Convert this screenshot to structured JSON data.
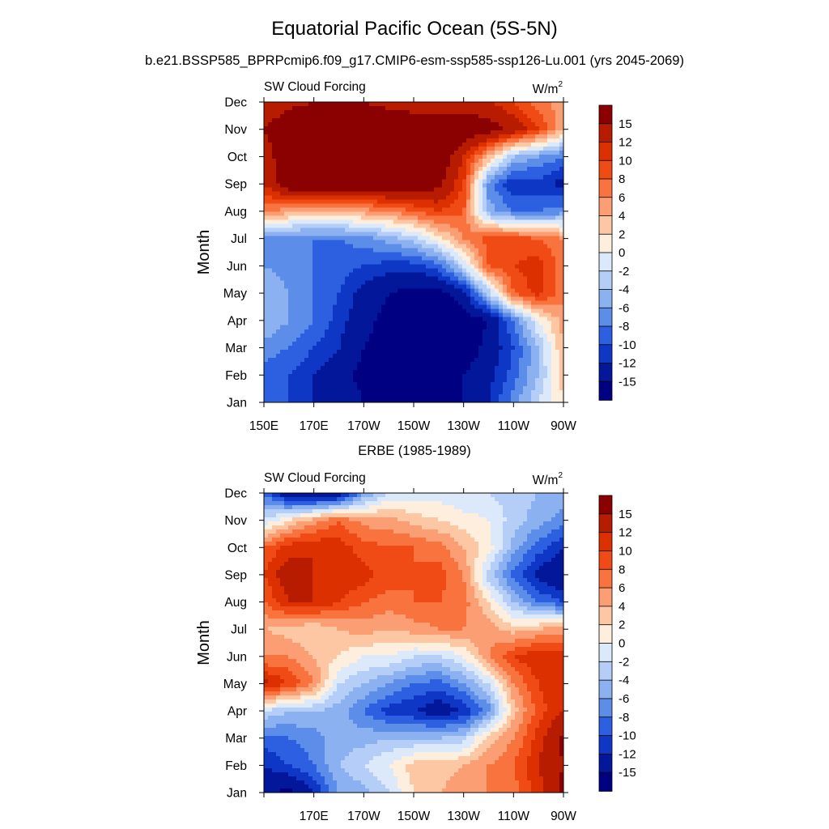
{
  "figure": {
    "title": "Equatorial Pacific Ocean (5S-5N)",
    "subtitle": "b.e21.BSSP585_BPRPcmip6.f09_g17.CMIP6-esm-ssp585-ssp126-Lu.001 (yrs 2045-2069)",
    "second_panel_title": "ERBE (1985-1989)"
  },
  "chart_data": [
    {
      "type": "heatmap",
      "panel_title": "",
      "left_label": "SW Cloud Forcing",
      "unit_base": "W/m",
      "unit_sup": "2",
      "ylabel": "Month",
      "xlabel": "",
      "x_tick_labels": [
        "150E",
        "170E",
        "170W",
        "150W",
        "130W",
        "110W",
        "90W"
      ],
      "y_tick_labels": [
        "Jan",
        "Feb",
        "Mar",
        "Apr",
        "May",
        "Jun",
        "Jul",
        "Aug",
        "Sep",
        "Oct",
        "Nov",
        "Dec"
      ],
      "x_range_lon_east": [
        150,
        270
      ],
      "y_range_month": [
        1,
        12
      ],
      "colorbar_levels": [
        "15",
        "12",
        "10",
        "8",
        "6",
        "4",
        "2",
        "0",
        "-2",
        "-4",
        "-6",
        "-8",
        "-10",
        "-12",
        "-15"
      ],
      "colors": [
        "#8b0000",
        "#b81c00",
        "#dc3000",
        "#f14b15",
        "#f8733e",
        "#fc9e73",
        "#fdc7a4",
        "#feeedd",
        "#dce9fb",
        "#b4cef7",
        "#8cb1f1",
        "#5c8de9",
        "#2d60e0",
        "#0e37c5",
        "#03179a",
        "#000083"
      ],
      "zmin": -18,
      "zmax": 18,
      "lon": [
        150,
        160,
        170,
        180,
        190,
        200,
        210,
        220,
        230,
        240,
        250,
        260,
        270
      ],
      "month": [
        1,
        2,
        3,
        4,
        5,
        6,
        7,
        8,
        9,
        10,
        11,
        12
      ],
      "values": [
        [
          -8,
          -10,
          -12,
          -13,
          -15,
          -17,
          -18,
          -17,
          -15,
          -12,
          -7,
          -2,
          2
        ],
        [
          -9,
          -10,
          -12,
          -14,
          -16,
          -17,
          -18,
          -17,
          -15,
          -13,
          -9,
          -4,
          3
        ],
        [
          -7,
          -8,
          -10,
          -12,
          -15,
          -17,
          -18,
          -18,
          -17,
          -14,
          -10,
          -4,
          4
        ],
        [
          -4,
          -6,
          -8,
          -11,
          -14,
          -16,
          -18,
          -18,
          -17,
          -15,
          -8,
          0,
          5
        ],
        [
          -4,
          -6,
          -8,
          -10,
          -13,
          -15,
          -16,
          -16,
          -13,
          -3,
          8,
          11,
          7
        ],
        [
          -6,
          -7,
          -8,
          -9,
          -10,
          -11,
          -11,
          -9,
          -2,
          8,
          10,
          11,
          7
        ],
        [
          -8,
          -8,
          -8,
          -8,
          -7,
          -5,
          -3,
          1,
          6,
          9,
          9,
          8,
          6
        ],
        [
          6,
          5,
          4,
          4,
          5,
          6,
          8,
          10,
          8,
          -5,
          -8,
          -8,
          -7
        ],
        [
          12,
          18,
          18,
          18,
          18,
          18,
          18,
          16,
          10,
          -7,
          -12,
          -11,
          -13
        ],
        [
          13,
          18,
          18,
          18,
          18,
          18,
          18,
          18,
          12,
          4,
          -4,
          -6,
          -8
        ],
        [
          15,
          18,
          18,
          18,
          18,
          18,
          18,
          18,
          18,
          17,
          14,
          10,
          4
        ],
        [
          12,
          14,
          15,
          16,
          15,
          14,
          13,
          13,
          13,
          12,
          10,
          7,
          5
        ]
      ]
    },
    {
      "type": "heatmap",
      "panel_title": "ERBE (1985-1989)",
      "left_label": "SW Cloud Forcing",
      "unit_base": "W/m",
      "unit_sup": "2",
      "ylabel": "Month",
      "xlabel": "",
      "x_tick_labels": [
        "170E",
        "170W",
        "150W",
        "130W",
        "110W",
        "90W"
      ],
      "y_tick_labels": [
        "Jan",
        "Feb",
        "Mar",
        "Apr",
        "May",
        "Jun",
        "Jul",
        "Aug",
        "Sep",
        "Oct",
        "Nov",
        "Dec"
      ],
      "x_range_lon_east": [
        150,
        270
      ],
      "y_range_month": [
        1,
        12
      ],
      "colorbar_levels": [
        "15",
        "12",
        "10",
        "8",
        "6",
        "4",
        "2",
        "0",
        "-2",
        "-4",
        "-6",
        "-8",
        "-10",
        "-12",
        "-15"
      ],
      "colors": [
        "#8b0000",
        "#b81c00",
        "#dc3000",
        "#f14b15",
        "#f8733e",
        "#fc9e73",
        "#fdc7a4",
        "#feeedd",
        "#dce9fb",
        "#b4cef7",
        "#8cb1f1",
        "#5c8de9",
        "#2d60e0",
        "#0e37c5",
        "#03179a",
        "#000083"
      ],
      "zmin": -18,
      "zmax": 18,
      "lon": [
        150,
        160,
        170,
        180,
        190,
        200,
        210,
        220,
        230,
        240,
        250,
        260,
        270
      ],
      "month": [
        1,
        2,
        3,
        4,
        5,
        6,
        7,
        8,
        9,
        10,
        11,
        12
      ],
      "values": [
        [
          -14,
          -16,
          -12,
          -6,
          -5,
          -2,
          2,
          4,
          5,
          6,
          7,
          11,
          16
        ],
        [
          -12,
          -10,
          -8,
          -4,
          -2,
          0,
          3,
          3,
          4,
          6,
          8,
          12,
          15
        ],
        [
          -9,
          -8,
          -7,
          -5,
          -5,
          -4,
          -4,
          -4,
          -3,
          3,
          6,
          11,
          16
        ],
        [
          -2,
          -4,
          -4,
          -5,
          -8,
          -11,
          -12,
          -14,
          -12,
          -7,
          3,
          9,
          12
        ],
        [
          13,
          10,
          6,
          -2,
          -4,
          -6,
          -8,
          -9,
          -6,
          -2,
          6,
          10,
          12
        ],
        [
          6,
          6,
          4,
          2,
          0,
          0,
          -2,
          -2,
          0,
          6,
          10,
          12,
          11
        ],
        [
          4,
          3,
          2,
          4,
          5,
          4,
          5,
          6,
          6,
          5,
          3,
          4,
          5
        ],
        [
          8,
          12,
          12,
          10,
          8,
          7,
          8,
          8,
          7,
          2,
          -4,
          -8,
          -10
        ],
        [
          10,
          14,
          12,
          12,
          11,
          9,
          8,
          9,
          6,
          -3,
          -9,
          -13,
          -15
        ],
        [
          8,
          11,
          12,
          11,
          9,
          8,
          8,
          7,
          4,
          1,
          -5,
          -9,
          -12
        ],
        [
          -2,
          2,
          5,
          8,
          5,
          5,
          3,
          2,
          1,
          0,
          -3,
          -5,
          -7
        ],
        [
          -8,
          -15,
          -16,
          -15,
          -6,
          -2,
          -1,
          -1,
          -2,
          -2,
          -3,
          -4,
          -5
        ]
      ]
    }
  ]
}
